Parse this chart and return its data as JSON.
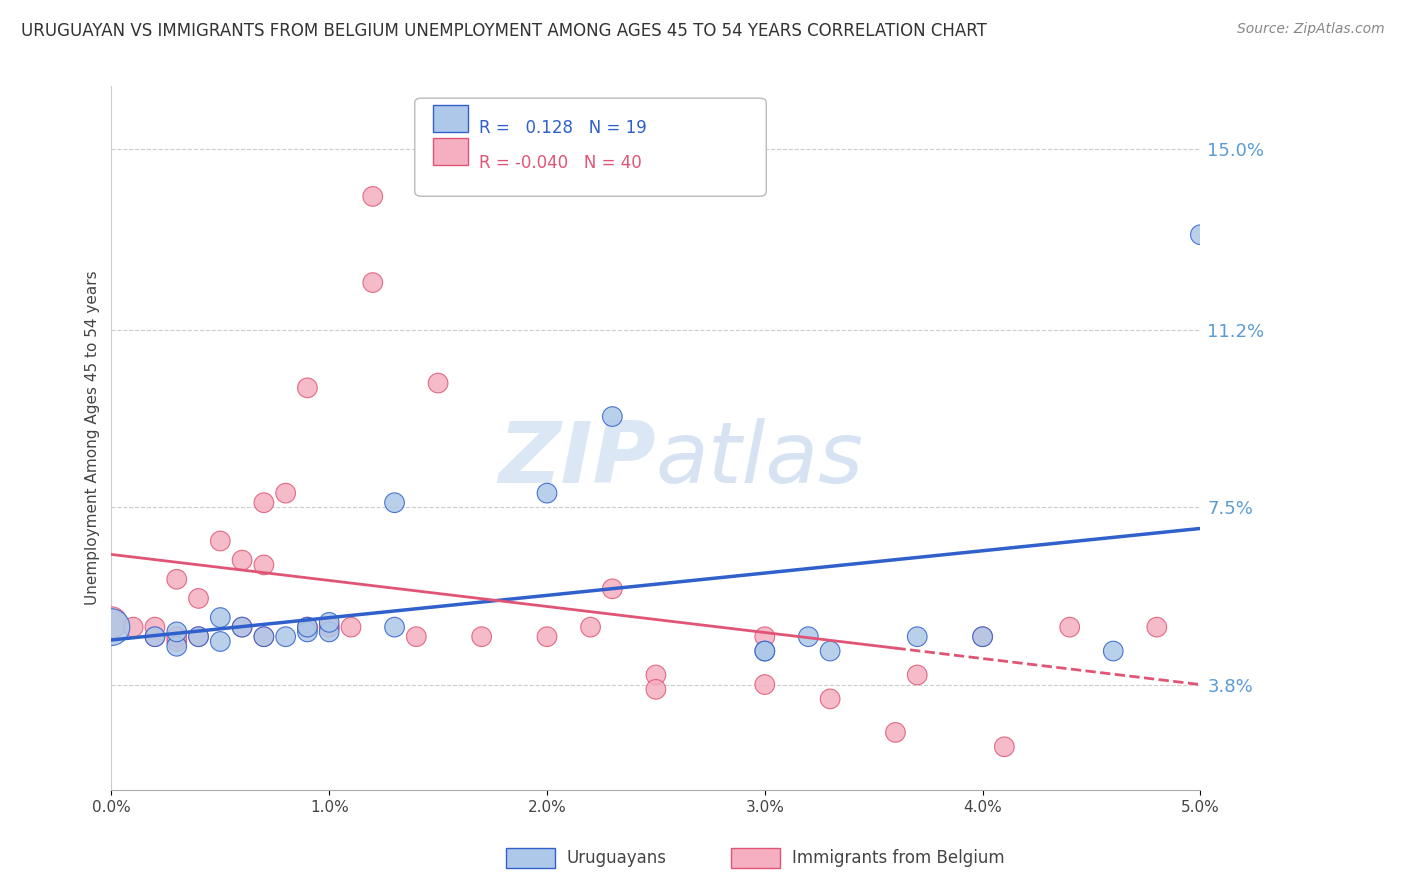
{
  "title": "URUGUAYAN VS IMMIGRANTS FROM BELGIUM UNEMPLOYMENT AMONG AGES 45 TO 54 YEARS CORRELATION CHART",
  "source": "Source: ZipAtlas.com",
  "ylabel": "Unemployment Among Ages 45 to 54 years",
  "ytick_labels": [
    "3.8%",
    "7.5%",
    "11.2%",
    "15.0%"
  ],
  "ytick_values": [
    0.038,
    0.075,
    0.112,
    0.15
  ],
  "xmin": 0.0,
  "xmax": 0.05,
  "ymin": 0.016,
  "ymax": 0.163,
  "uruguayan_color": "#adc8e8",
  "belgium_color": "#f5afc0",
  "trend_uruguayan_color": "#3060cc",
  "trend_belgium_color": "#e05575",
  "uruguayan_points": [
    [
      0.0,
      0.05
    ],
    [
      0.002,
      0.048
    ],
    [
      0.003,
      0.046
    ],
    [
      0.003,
      0.049
    ],
    [
      0.004,
      0.048
    ],
    [
      0.005,
      0.047
    ],
    [
      0.005,
      0.052
    ],
    [
      0.006,
      0.05
    ],
    [
      0.007,
      0.048
    ],
    [
      0.008,
      0.048
    ],
    [
      0.009,
      0.049
    ],
    [
      0.009,
      0.05
    ],
    [
      0.01,
      0.049
    ],
    [
      0.01,
      0.051
    ],
    [
      0.013,
      0.05
    ],
    [
      0.013,
      0.076
    ],
    [
      0.02,
      0.078
    ],
    [
      0.023,
      0.094
    ],
    [
      0.03,
      0.045
    ],
    [
      0.03,
      0.045
    ],
    [
      0.032,
      0.048
    ],
    [
      0.033,
      0.045
    ],
    [
      0.037,
      0.048
    ],
    [
      0.04,
      0.048
    ],
    [
      0.046,
      0.045
    ],
    [
      0.05,
      0.132
    ]
  ],
  "belgium_points": [
    [
      0.0,
      0.051
    ],
    [
      0.001,
      0.05
    ],
    [
      0.002,
      0.048
    ],
    [
      0.002,
      0.05
    ],
    [
      0.003,
      0.047
    ],
    [
      0.003,
      0.048
    ],
    [
      0.003,
      0.06
    ],
    [
      0.004,
      0.048
    ],
    [
      0.004,
      0.056
    ],
    [
      0.005,
      0.068
    ],
    [
      0.006,
      0.05
    ],
    [
      0.006,
      0.064
    ],
    [
      0.007,
      0.048
    ],
    [
      0.007,
      0.063
    ],
    [
      0.007,
      0.076
    ],
    [
      0.008,
      0.078
    ],
    [
      0.009,
      0.1
    ],
    [
      0.009,
      0.05
    ],
    [
      0.01,
      0.05
    ],
    [
      0.01,
      0.05
    ],
    [
      0.011,
      0.05
    ],
    [
      0.012,
      0.14
    ],
    [
      0.012,
      0.122
    ],
    [
      0.014,
      0.048
    ],
    [
      0.015,
      0.101
    ],
    [
      0.017,
      0.048
    ],
    [
      0.02,
      0.048
    ],
    [
      0.022,
      0.05
    ],
    [
      0.023,
      0.058
    ],
    [
      0.025,
      0.04
    ],
    [
      0.025,
      0.037
    ],
    [
      0.03,
      0.048
    ],
    [
      0.03,
      0.038
    ],
    [
      0.033,
      0.035
    ],
    [
      0.036,
      0.028
    ],
    [
      0.037,
      0.04
    ],
    [
      0.04,
      0.048
    ],
    [
      0.041,
      0.025
    ],
    [
      0.044,
      0.05
    ],
    [
      0.048,
      0.05
    ]
  ]
}
